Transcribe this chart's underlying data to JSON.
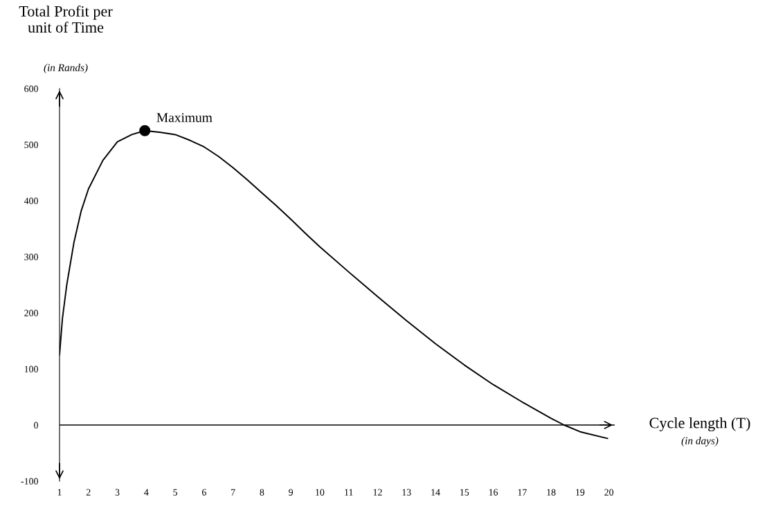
{
  "chart_data": {
    "type": "line",
    "ylabel": "Total Profit per\nunit of Time",
    "xlabel": "Cycle length (T)",
    "annotations": [
      "(in Rands)",
      "(in days)",
      {
        "text": "Maximum",
        "x": 3.95,
        "y": 525
      }
    ],
    "series": [
      {
        "color": "#000000",
        "x": [
          1,
          1.1,
          1.25,
          1.5,
          1.75,
          2,
          2.5,
          3,
          3.5,
          3.95,
          4.5,
          5,
          5.5,
          6,
          6.5,
          7,
          7.5,
          8,
          8.5,
          9,
          9.5,
          10,
          11,
          12,
          13,
          14,
          15,
          16,
          17,
          18,
          18.45,
          19,
          19.95
        ],
        "values": [
          125,
          190,
          250,
          326,
          382,
          421,
          472,
          505,
          518,
          525,
          522,
          518,
          508,
          496,
          479,
          459,
          437,
          414,
          391,
          367,
          342,
          318,
          273,
          229,
          186,
          145,
          107,
          72,
          41,
          12,
          0,
          -12,
          -24
        ]
      },
      {
        "type": "scatter",
        "color": "#000000",
        "x": [
          3.95
        ],
        "values": [
          525
        ]
      }
    ],
    "xlim": [
      1,
      20.2
    ],
    "xticks": [
      1,
      2,
      3,
      4,
      5,
      6,
      7,
      8,
      9,
      10,
      11,
      12,
      13,
      14,
      15,
      16,
      17,
      18,
      19,
      20
    ],
    "ylim": [
      -100,
      600
    ],
    "yticks": [
      -100,
      0,
      100,
      200,
      300,
      400,
      500,
      600
    ],
    "ref_lines": [
      {
        "axis": "y",
        "value": 0,
        "color": "#000000"
      }
    ],
    "grid": false
  }
}
